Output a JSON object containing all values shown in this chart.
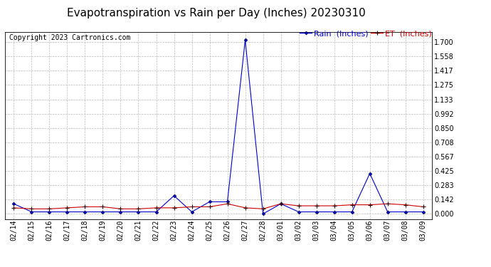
{
  "title": "Evapotranspiration vs Rain per Day (Inches) 20230310",
  "copyright": "Copyright 2023 Cartronics.com",
  "legend_rain": "Rain  (Inches)",
  "legend_et": "ET  (Inches)",
  "dates": [
    "02/14",
    "02/15",
    "02/16",
    "02/17",
    "02/18",
    "02/19",
    "02/20",
    "02/21",
    "02/22",
    "02/23",
    "02/24",
    "02/25",
    "02/26",
    "02/27",
    "02/28",
    "03/01",
    "03/02",
    "03/03",
    "03/04",
    "03/05",
    "03/06",
    "03/07",
    "03/08",
    "03/09"
  ],
  "rain": [
    0.1,
    0.02,
    0.02,
    0.02,
    0.02,
    0.02,
    0.02,
    0.02,
    0.02,
    0.18,
    0.02,
    0.12,
    0.12,
    1.72,
    0.0,
    0.1,
    0.02,
    0.02,
    0.02,
    0.02,
    0.4,
    0.02,
    0.02,
    0.02
  ],
  "et": [
    0.06,
    0.05,
    0.05,
    0.06,
    0.07,
    0.07,
    0.05,
    0.05,
    0.06,
    0.06,
    0.07,
    0.07,
    0.1,
    0.06,
    0.05,
    0.1,
    0.08,
    0.08,
    0.08,
    0.09,
    0.09,
    0.1,
    0.09,
    0.07
  ],
  "rain_color": "#0000cc",
  "et_color": "#cc0000",
  "grid_color": "#bbbbbb",
  "background_color": "#ffffff",
  "title_fontsize": 11,
  "copyright_fontsize": 7,
  "legend_fontsize": 8,
  "tick_fontsize": 7,
  "yticks": [
    0.0,
    0.142,
    0.283,
    0.425,
    0.567,
    0.708,
    0.85,
    0.992,
    1.133,
    1.275,
    1.417,
    1.558,
    1.7
  ],
  "ylim": [
    -0.05,
    1.8
  ]
}
